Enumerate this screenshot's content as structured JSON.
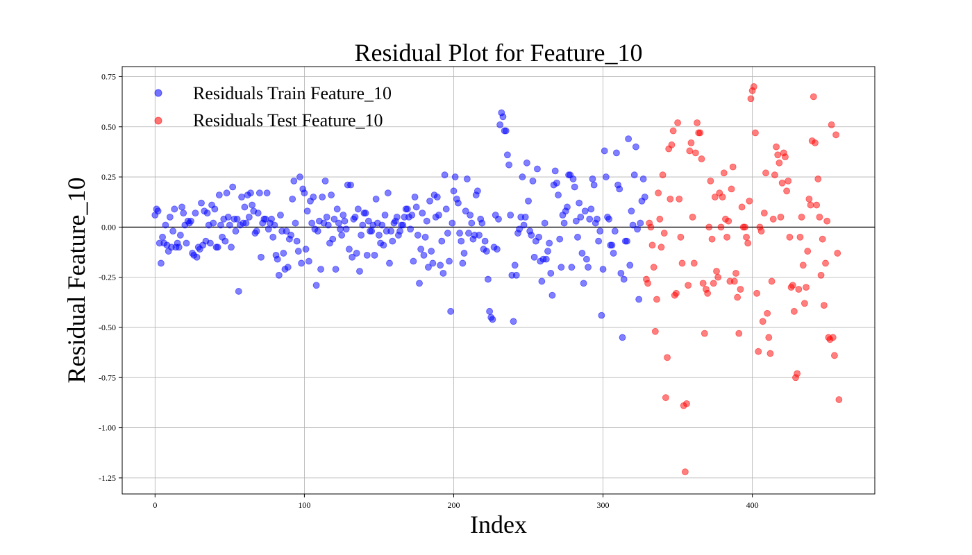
{
  "chart_data": {
    "type": "scatter",
    "title": "Residual Plot for Feature_10",
    "xlabel": "Index",
    "ylabel": "Residual Feature_10",
    "xlim": [
      -22,
      482
    ],
    "ylim": [
      -1.33,
      0.8
    ],
    "xticks": [
      0,
      100,
      200,
      300,
      400
    ],
    "yticks": [
      -1.25,
      -1.0,
      -0.75,
      -0.5,
      -0.25,
      0.0,
      0.25,
      0.5,
      0.75
    ],
    "ytick_labels": [
      "-1.25",
      "-1.00",
      "-0.75",
      "-0.50",
      "-0.25",
      "0.00",
      "0.25",
      "0.50",
      "0.75"
    ],
    "grid": true,
    "legend_position": "top-left",
    "reference_line_y": 0,
    "series": [
      {
        "name": "Residuals Train Feature_10",
        "color": "#0000ff",
        "x": [
          0,
          1,
          2,
          3,
          4,
          5,
          6,
          7,
          8,
          9,
          10,
          11,
          12,
          13,
          14,
          15,
          16,
          17,
          18,
          19,
          20,
          21,
          22,
          23,
          24,
          25,
          26,
          27,
          28,
          29,
          30,
          31,
          32,
          33,
          34,
          35,
          36,
          37,
          38,
          39,
          40,
          41,
          42,
          43,
          44,
          45,
          46,
          47,
          48,
          49,
          50,
          51,
          52,
          53,
          54,
          55,
          56,
          57,
          58,
          59,
          60,
          61,
          62,
          63,
          64,
          65,
          66,
          67,
          68,
          69,
          70,
          71,
          72,
          73,
          74,
          75,
          76,
          77,
          78,
          79,
          80,
          81,
          82,
          83,
          84,
          85,
          86,
          87,
          88,
          89,
          90,
          91,
          92,
          93,
          94,
          95,
          96,
          97,
          98,
          99,
          100,
          101,
          102,
          103,
          104,
          105,
          106,
          107,
          108,
          109,
          110,
          111,
          112,
          113,
          114,
          115,
          116,
          117,
          118,
          119,
          120,
          121,
          122,
          123,
          124,
          125,
          126,
          127,
          128,
          129,
          130,
          131,
          132,
          133,
          134,
          135,
          136,
          137,
          138,
          139,
          140,
          141,
          142,
          143,
          144,
          145,
          146,
          147,
          148,
          149,
          150,
          151,
          152,
          153,
          154,
          155,
          156,
          157,
          158,
          159,
          160,
          161,
          162,
          163,
          164,
          165,
          166,
          167,
          168,
          169,
          170,
          171,
          172,
          173,
          174,
          175,
          176,
          177,
          178,
          179,
          180,
          181,
          182,
          183,
          184,
          185,
          186,
          187,
          188,
          189,
          190,
          191,
          192,
          193,
          194,
          195,
          196,
          197,
          198,
          199,
          200,
          201,
          202,
          203,
          204,
          205,
          206,
          207,
          208,
          209,
          210,
          211,
          212,
          213,
          214,
          215,
          216,
          217,
          218,
          219,
          220,
          221,
          222,
          223,
          224,
          225,
          226,
          227,
          228,
          229,
          230,
          231,
          232,
          233,
          234,
          235,
          236,
          237,
          238,
          239,
          240,
          241,
          242,
          243,
          244,
          245,
          246,
          247,
          248,
          249,
          250,
          251,
          252,
          253,
          254,
          255,
          256,
          257,
          258,
          259,
          260,
          261,
          262,
          263,
          264,
          265,
          266,
          267,
          268,
          269,
          270,
          271,
          272,
          273,
          274,
          275,
          276,
          277,
          278,
          279,
          280,
          281,
          282,
          283,
          284,
          285,
          286,
          287,
          288,
          289,
          290,
          291,
          292,
          293,
          294,
          295,
          296,
          297,
          298,
          299,
          300,
          301,
          302,
          303,
          304,
          305,
          306,
          307,
          308,
          309,
          310,
          311,
          312,
          313,
          314,
          315,
          316,
          317,
          318,
          319,
          320,
          321,
          322,
          323,
          324,
          325,
          326,
          327,
          328
        ],
        "y": [
          0.06,
          0.09,
          0.08,
          -0.08,
          -0.18,
          -0.05,
          -0.08,
          0.01,
          -0.09,
          -0.12,
          0.05,
          -0.1,
          -0.02,
          0.09,
          -0.1,
          -0.08,
          -0.1,
          -0.04,
          0.1,
          0.07,
          0.01,
          -0.08,
          0.03,
          0.02,
          0.03,
          -0.13,
          -0.14,
          0.07,
          -0.15,
          -0.1,
          -0.11,
          0.12,
          -0.09,
          0.08,
          -0.07,
          0.07,
          0.01,
          -0.08,
          0.11,
          0.02,
          0.09,
          -0.1,
          -0.1,
          0.16,
          0.01,
          -0.05,
          0.04,
          -0.07,
          0.17,
          0.05,
          0.01,
          -0.1,
          0.2,
          0.04,
          -0.02,
          0.04,
          -0.32,
          0.01,
          0.15,
          0.02,
          0.1,
          0.02,
          0.16,
          0.05,
          0.17,
          0.11,
          0.08,
          -0.03,
          -0.02,
          0.07,
          0.17,
          -0.15,
          0.02,
          0.04,
          0.04,
          0.17,
          -0.01,
          0.02,
          0.04,
          -0.05,
          0.01,
          -0.14,
          -0.16,
          -0.24,
          0.06,
          -0.02,
          -0.13,
          -0.21,
          -0.02,
          -0.2,
          -0.06,
          -0.04,
          0.14,
          0.23,
          0.02,
          -0.07,
          -0.12,
          0.25,
          -0.18,
          0.19,
          0.17,
          -0.11,
          0.08,
          -0.17,
          0.13,
          0.02,
          0.15,
          -0.01,
          -0.29,
          -0.02,
          0.03,
          -0.21,
          0.15,
          0.02,
          0.23,
          0.05,
          0.01,
          -0.08,
          0.16,
          -0.06,
          0.04,
          -0.21,
          0.09,
          0.02,
          -0.01,
          -0.04,
          0.06,
          0.03,
          -0.01,
          0.21,
          -0.11,
          0.21,
          -0.15,
          0.04,
          0.05,
          -0.13,
          0.09,
          -0.22,
          -0.04,
          0.01,
          0.07,
          0.07,
          -0.14,
          0.03,
          -0.02,
          -0.02,
          0.01,
          -0.14,
          0.14,
          0.02,
          -0.04,
          -0.08,
          0.01,
          -0.09,
          0.06,
          -0.02,
          0.17,
          -0.18,
          -0.02,
          -0.07,
          0.02,
          0.03,
          0.05,
          -0.04,
          -0.02,
          0.01,
          0.01,
          0.05,
          0.09,
          0.09,
          0.05,
          -0.01,
          0.06,
          -0.17,
          0.15,
          0.1,
          -0.04,
          -0.28,
          -0.11,
          0.07,
          -0.14,
          -0.05,
          0.03,
          -0.2,
          0.13,
          -0.12,
          -0.18,
          0.16,
          0.05,
          0.15,
          0.06,
          -0.19,
          -0.07,
          -0.23,
          0.26,
          0.09,
          -0.03,
          -0.17,
          -0.42,
          0.02,
          0.18,
          0.25,
          0.14,
          0.12,
          -0.03,
          -0.07,
          -0.18,
          -0.13,
          0.08,
          0.24,
          -0.03,
          0.06,
          0.02,
          -0.06,
          -0.04,
          0.16,
          0.18,
          -0.04,
          0.04,
          0.02,
          -0.11,
          -0.07,
          -0.12,
          -0.26,
          -0.42,
          -0.45,
          -0.46,
          -0.1,
          0.06,
          -0.11,
          0.04,
          0.51,
          0.57,
          0.55,
          0.48,
          0.48,
          0.36,
          0.31,
          0.06,
          -0.24,
          -0.47,
          -0.19,
          -0.24,
          -0.03,
          -0.01,
          0.05,
          0.25,
          0.01,
          0.05,
          0.32,
          0.13,
          -0.02,
          -0.04,
          0.23,
          -0.15,
          -0.07,
          0.29,
          -0.05,
          -0.17,
          -0.27,
          -0.16,
          0.02,
          -0.16,
          -0.12,
          -0.08,
          -0.23,
          -0.34,
          0.21,
          0.28,
          0.22,
          0.16,
          -0.06,
          -0.2,
          0.06,
          0.02,
          0.08,
          0.1,
          0.26,
          0.26,
          -0.2,
          0.24,
          0.2,
          0.03,
          -0.05,
          0.12,
          0.05,
          -0.13,
          -0.28,
          0.08,
          -0.16,
          -0.2,
          0.04,
          0.09,
          0.24,
          0.21,
          0.02,
          0.04,
          -0.07,
          -0.02,
          -0.44,
          -0.21,
          0.38,
          0.25,
          0.05,
          0.04,
          -0.09,
          -0.09,
          -0.13,
          -0.02,
          0.37,
          0.21,
          0.19,
          -0.23,
          -0.55,
          -0.26,
          -0.07,
          -0.07,
          0.44,
          -0.19,
          0.08,
          0.01,
          0.26,
          0.4,
          -0.01,
          -0.36,
          0.02,
          0.13,
          0.24,
          0.15
        ]
      },
      {
        "name": "Residuals Test Feature_10",
        "color": "#ff0000",
        "x": [
          329,
          330,
          331,
          332,
          333,
          334,
          335,
          336,
          337,
          338,
          339,
          340,
          341,
          342,
          343,
          344,
          345,
          346,
          347,
          348,
          349,
          350,
          351,
          352,
          353,
          354,
          355,
          356,
          357,
          358,
          359,
          360,
          361,
          362,
          363,
          364,
          365,
          366,
          367,
          368,
          369,
          370,
          371,
          372,
          373,
          374,
          375,
          376,
          377,
          378,
          379,
          380,
          381,
          382,
          383,
          384,
          385,
          386,
          387,
          388,
          389,
          390,
          391,
          392,
          393,
          394,
          395,
          396,
          397,
          398,
          399,
          400,
          401,
          402,
          403,
          404,
          405,
          406,
          407,
          408,
          409,
          410,
          411,
          412,
          413,
          414,
          415,
          416,
          417,
          418,
          419,
          420,
          421,
          422,
          423,
          424,
          425,
          426,
          427,
          428,
          429,
          430,
          431,
          432,
          433,
          434,
          435,
          436,
          437,
          438,
          439,
          440,
          441,
          442,
          443,
          444,
          445,
          446,
          447,
          448,
          449,
          450,
          451,
          452,
          453,
          454,
          455,
          456,
          457,
          458
        ],
        "y": [
          -0.26,
          -0.28,
          0.02,
          0.0,
          -0.09,
          -0.2,
          -0.52,
          -0.36,
          0.17,
          0.04,
          -0.1,
          0.26,
          -0.03,
          -0.85,
          -0.65,
          0.39,
          0.14,
          0.41,
          0.48,
          -0.34,
          -0.33,
          0.52,
          0.14,
          -0.05,
          -0.18,
          -0.89,
          -1.22,
          -0.88,
          -0.29,
          0.38,
          0.42,
          0.05,
          -0.18,
          0.37,
          0.52,
          0.47,
          0.47,
          0.34,
          -0.28,
          -0.53,
          -0.31,
          -0.33,
          0.0,
          0.23,
          -0.06,
          -0.28,
          0.15,
          -0.22,
          -0.25,
          0.17,
          0.0,
          0.15,
          0.27,
          0.04,
          -0.05,
          0.03,
          -0.27,
          0.19,
          0.3,
          -0.27,
          -0.23,
          -0.35,
          -0.53,
          -0.31,
          0.1,
          0.0,
          0.0,
          -0.05,
          -0.08,
          0.13,
          0.64,
          0.68,
          0.7,
          0.47,
          -0.33,
          -0.62,
          0.0,
          -0.02,
          -0.47,
          0.07,
          0.27,
          -0.43,
          -0.55,
          -0.63,
          -0.27,
          0.04,
          0.26,
          0.4,
          0.36,
          0.32,
          0.05,
          0.22,
          0.37,
          0.35,
          0.18,
          0.23,
          -0.05,
          -0.3,
          -0.29,
          -0.42,
          -0.75,
          -0.73,
          -0.31,
          -0.05,
          0.05,
          -0.19,
          -0.38,
          -0.3,
          -0.12,
          0.14,
          0.11,
          0.43,
          0.65,
          0.42,
          0.11,
          0.24,
          0.05,
          -0.24,
          -0.06,
          -0.39,
          -0.18,
          0.03,
          -0.55,
          -0.56,
          0.51,
          -0.55,
          -0.64,
          0.46,
          -0.13,
          -0.86
        ]
      }
    ]
  }
}
